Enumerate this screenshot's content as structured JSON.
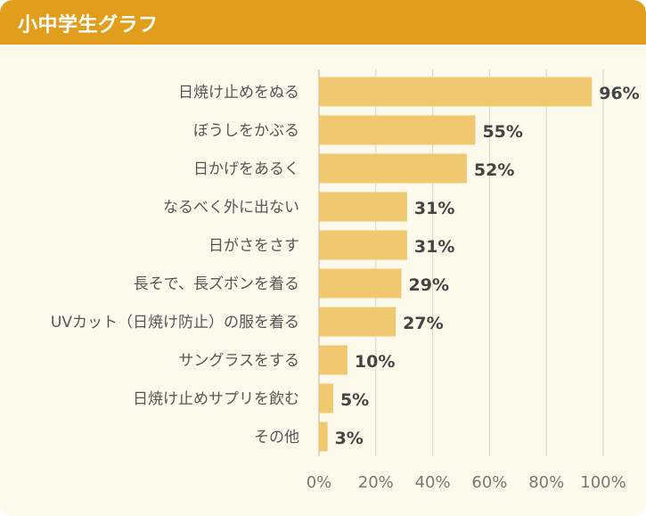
{
  "header": {
    "title": "小中学生グラフ"
  },
  "colors": {
    "header": "#e09e1c",
    "bar": "#f0c870",
    "background": "#fdfaeb",
    "grid": "#dcd6c2",
    "label": "#555555",
    "value": "#444444"
  },
  "chart_data": {
    "type": "bar",
    "orientation": "horizontal",
    "title": "小中学生グラフ",
    "xlabel": "",
    "ylabel": "",
    "xlim": [
      0,
      100
    ],
    "grid": true,
    "categories": [
      "日焼け止めをぬる",
      "ぼうしをかぶる",
      "日かげをあるく",
      "なるべく外に出ない",
      "日がさをさす",
      "長そで、長ズボンを着る",
      "UVカット（日焼け防止）の服を着る",
      "サングラスをする",
      "日焼け止めサプリを飲む",
      "その他"
    ],
    "values": [
      96,
      55,
      52,
      31,
      31,
      29,
      27,
      10,
      5,
      3
    ],
    "value_labels": [
      "96%",
      "55%",
      "52%",
      "31%",
      "31%",
      "29%",
      "27%",
      "10%",
      "5%",
      "3%"
    ],
    "ticks": [
      0,
      20,
      40,
      60,
      80,
      100
    ],
    "tick_labels": [
      "0%",
      "20%",
      "40%",
      "60%",
      "80%",
      "100%"
    ]
  }
}
